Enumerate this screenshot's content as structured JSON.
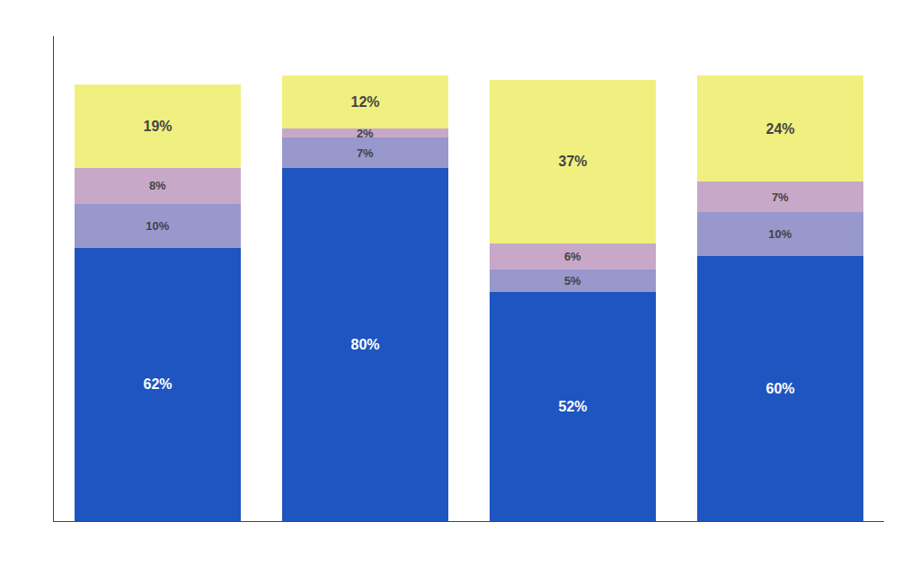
{
  "chart_data": {
    "type": "bar",
    "stacked": true,
    "categories": [
      null,
      null,
      null,
      null
    ],
    "series": [
      {
        "color": "#1E55C0",
        "values": [
          62,
          80,
          52,
          60
        ],
        "value_labels": [
          "62%",
          "80%",
          "52%",
          "60%"
        ]
      },
      {
        "color": "#9898CC",
        "values": [
          10,
          7,
          5,
          10
        ],
        "value_labels": [
          "10%",
          "7%",
          "5%",
          "10%"
        ]
      },
      {
        "color": "#C8A8C8",
        "values": [
          8,
          2,
          6,
          7
        ],
        "value_labels": [
          "8%",
          "2%",
          "6%",
          "7%"
        ]
      },
      {
        "color": "#F0F080",
        "values": [
          19,
          12,
          37,
          24
        ],
        "value_labels": [
          "19%",
          "12%",
          "37%",
          "24%"
        ]
      }
    ],
    "ylim": [
      0,
      110
    ],
    "yticks": [],
    "data_labels": true,
    "tick_labels": false,
    "grid": false
  }
}
